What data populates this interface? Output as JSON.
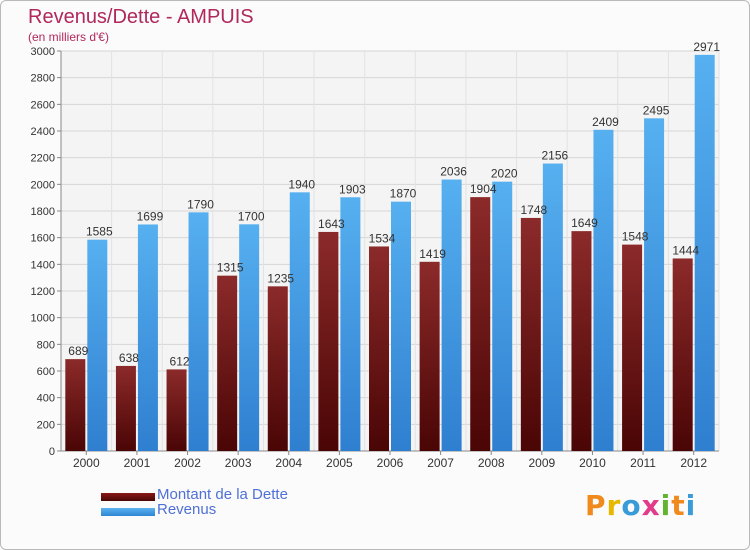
{
  "header": {
    "title": "Revenus/Dette - AMPUIS",
    "subtitle": "(en milliers d'€)"
  },
  "legend": {
    "items": [
      {
        "label": "Montant de la Dette",
        "color": "#6a0e0e"
      },
      {
        "label": "Revenus",
        "color": "#3d9be6"
      }
    ]
  },
  "brand": {
    "logo_text": "Proxiti",
    "letter_colors": [
      "#f08a1c",
      "#e8b800",
      "#3a9bd9",
      "#e23b8a",
      "#62b32f",
      "#f08a1c",
      "#3a9bd9"
    ]
  },
  "chart_data": {
    "type": "bar",
    "title": "Revenus/Dette - AMPUIS",
    "subtitle": "(en milliers d'€)",
    "categories": [
      "2000",
      "2001",
      "2002",
      "2003",
      "2004",
      "2005",
      "2006",
      "2007",
      "2008",
      "2009",
      "2010",
      "2011",
      "2012"
    ],
    "series": [
      {
        "name": "Montant de la Dette",
        "color": "#6a0e0e",
        "labels": [
          "689",
          "638",
          "612",
          "1315",
          "1235",
          "1643",
          "1534",
          "1419",
          "1904",
          "1748",
          "1649",
          "1548",
          "1444"
        ],
        "values": [
          689,
          638,
          612,
          1315,
          1235,
          1643,
          1534,
          1419,
          1904,
          1748,
          1649,
          1548,
          1444
        ]
      },
      {
        "name": "Revenus",
        "color": "#3d9be6",
        "labels": [
          "1585",
          "1699",
          "1790",
          "1700",
          "1940",
          "1903",
          "1870",
          "2036",
          "2020",
          "2156",
          "2409",
          "2495",
          "2971"
        ],
        "values": [
          1585,
          1699,
          1790,
          1700,
          1940,
          1903,
          1870,
          2036,
          2020,
          2156,
          2409,
          2495,
          2971
        ]
      }
    ],
    "ylim": [
      0,
      3000
    ],
    "yticks": [
      "0",
      "200",
      "400",
      "600",
      "800",
      "1000",
      "1200",
      "1400",
      "1600",
      "1800",
      "2000",
      "2200",
      "2400",
      "2600",
      "2800",
      "3000"
    ],
    "grid": true,
    "legend_position": "bottom-left"
  }
}
